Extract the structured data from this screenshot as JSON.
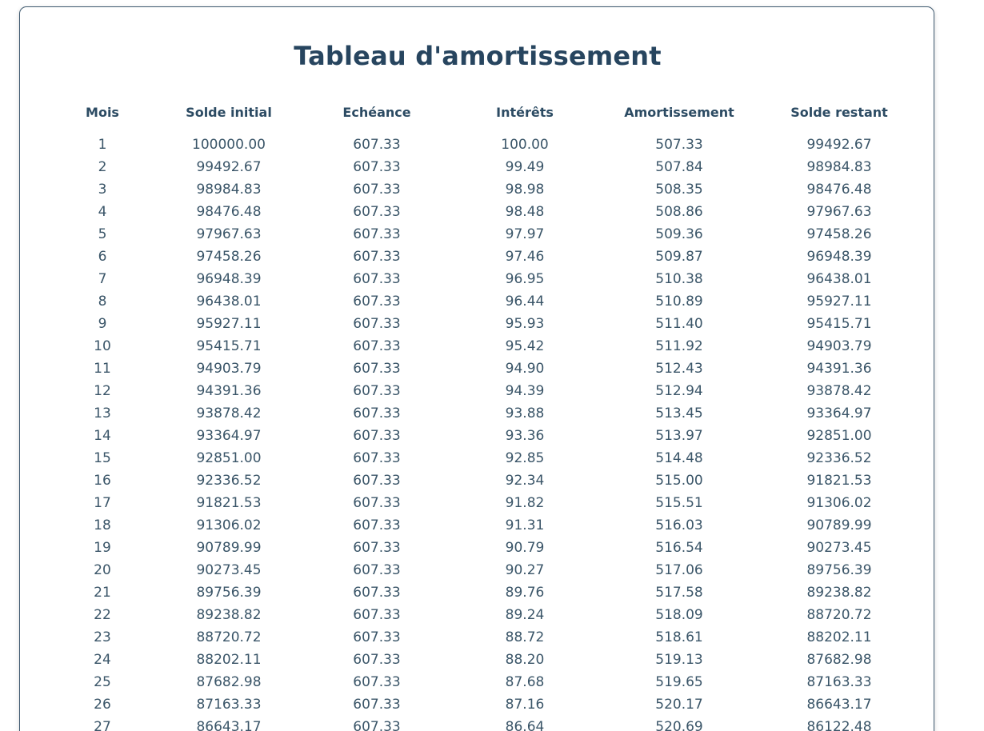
{
  "title": "Tableau d'amortissement",
  "table": {
    "headers": [
      "Mois",
      "Solde initial",
      "Echéance",
      "Intérêts",
      "Amortissement",
      "Solde restant"
    ],
    "rows": [
      [
        "1",
        "100000.00",
        "607.33",
        "100.00",
        "507.33",
        "99492.67"
      ],
      [
        "2",
        "99492.67",
        "607.33",
        "99.49",
        "507.84",
        "98984.83"
      ],
      [
        "3",
        "98984.83",
        "607.33",
        "98.98",
        "508.35",
        "98476.48"
      ],
      [
        "4",
        "98476.48",
        "607.33",
        "98.48",
        "508.86",
        "97967.63"
      ],
      [
        "5",
        "97967.63",
        "607.33",
        "97.97",
        "509.36",
        "97458.26"
      ],
      [
        "6",
        "97458.26",
        "607.33",
        "97.46",
        "509.87",
        "96948.39"
      ],
      [
        "7",
        "96948.39",
        "607.33",
        "96.95",
        "510.38",
        "96438.01"
      ],
      [
        "8",
        "96438.01",
        "607.33",
        "96.44",
        "510.89",
        "95927.11"
      ],
      [
        "9",
        "95927.11",
        "607.33",
        "95.93",
        "511.40",
        "95415.71"
      ],
      [
        "10",
        "95415.71",
        "607.33",
        "95.42",
        "511.92",
        "94903.79"
      ],
      [
        "11",
        "94903.79",
        "607.33",
        "94.90",
        "512.43",
        "94391.36"
      ],
      [
        "12",
        "94391.36",
        "607.33",
        "94.39",
        "512.94",
        "93878.42"
      ],
      [
        "13",
        "93878.42",
        "607.33",
        "93.88",
        "513.45",
        "93364.97"
      ],
      [
        "14",
        "93364.97",
        "607.33",
        "93.36",
        "513.97",
        "92851.00"
      ],
      [
        "15",
        "92851.00",
        "607.33",
        "92.85",
        "514.48",
        "92336.52"
      ],
      [
        "16",
        "92336.52",
        "607.33",
        "92.34",
        "515.00",
        "91821.53"
      ],
      [
        "17",
        "91821.53",
        "607.33",
        "91.82",
        "515.51",
        "91306.02"
      ],
      [
        "18",
        "91306.02",
        "607.33",
        "91.31",
        "516.03",
        "90789.99"
      ],
      [
        "19",
        "90789.99",
        "607.33",
        "90.79",
        "516.54",
        "90273.45"
      ],
      [
        "20",
        "90273.45",
        "607.33",
        "90.27",
        "517.06",
        "89756.39"
      ],
      [
        "21",
        "89756.39",
        "607.33",
        "89.76",
        "517.58",
        "89238.82"
      ],
      [
        "22",
        "89238.82",
        "607.33",
        "89.24",
        "518.09",
        "88720.72"
      ],
      [
        "23",
        "88720.72",
        "607.33",
        "88.72",
        "518.61",
        "88202.11"
      ],
      [
        "24",
        "88202.11",
        "607.33",
        "88.20",
        "519.13",
        "87682.98"
      ],
      [
        "25",
        "87682.98",
        "607.33",
        "87.68",
        "519.65",
        "87163.33"
      ],
      [
        "26",
        "87163.33",
        "607.33",
        "87.16",
        "520.17",
        "86643.17"
      ],
      [
        "27",
        "86643.17",
        "607.33",
        "86.64",
        "520.69",
        "86122.48"
      ]
    ]
  }
}
